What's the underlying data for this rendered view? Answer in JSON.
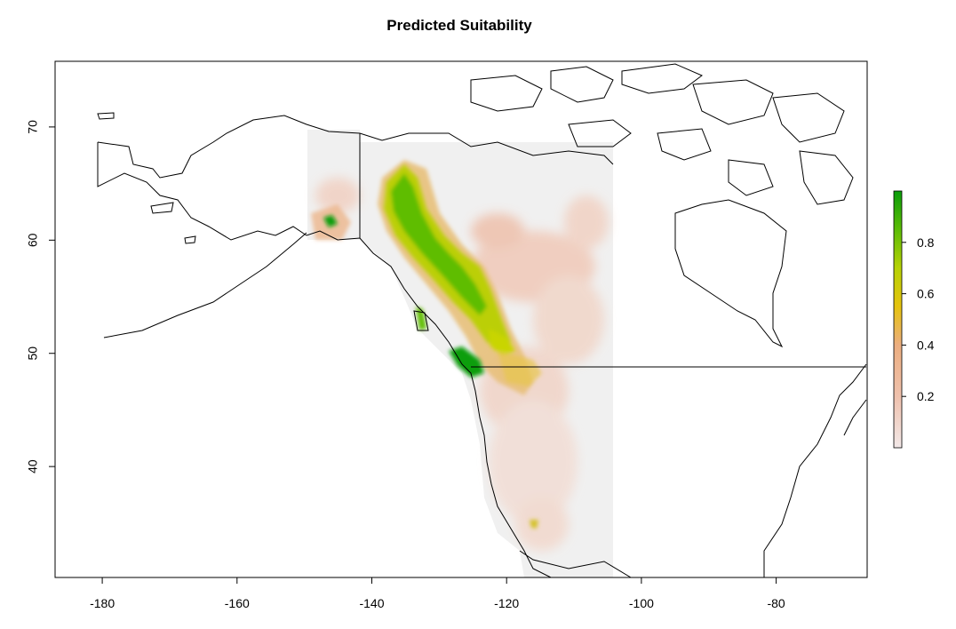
{
  "title": "Predicted Suitability",
  "map": {
    "x_ticks": [
      -180,
      -160,
      -140,
      -120,
      -100,
      -80
    ],
    "y_ticks": [
      40,
      50,
      60,
      70
    ],
    "xlim": [
      -187,
      -66.5
    ],
    "ylim": [
      30.2,
      75.8
    ],
    "background_grey": "#f0f0f0",
    "raster_extent_lon": [
      -149.2,
      -103.9
    ],
    "raster_extent_lat": [
      30.2,
      69.7
    ]
  },
  "legend": {
    "ticks": [
      0.2,
      0.4,
      0.6,
      0.8
    ],
    "tick_labels": [
      "0.2",
      "0.4",
      "0.6",
      "0.8"
    ],
    "range": [
      0.0,
      1.0
    ],
    "colors": [
      "#f2f2f2",
      "#efc5b3",
      "#ecb08a",
      "#e9c22a",
      "#c5d406",
      "#6bc406",
      "#0c9e0a"
    ]
  }
}
